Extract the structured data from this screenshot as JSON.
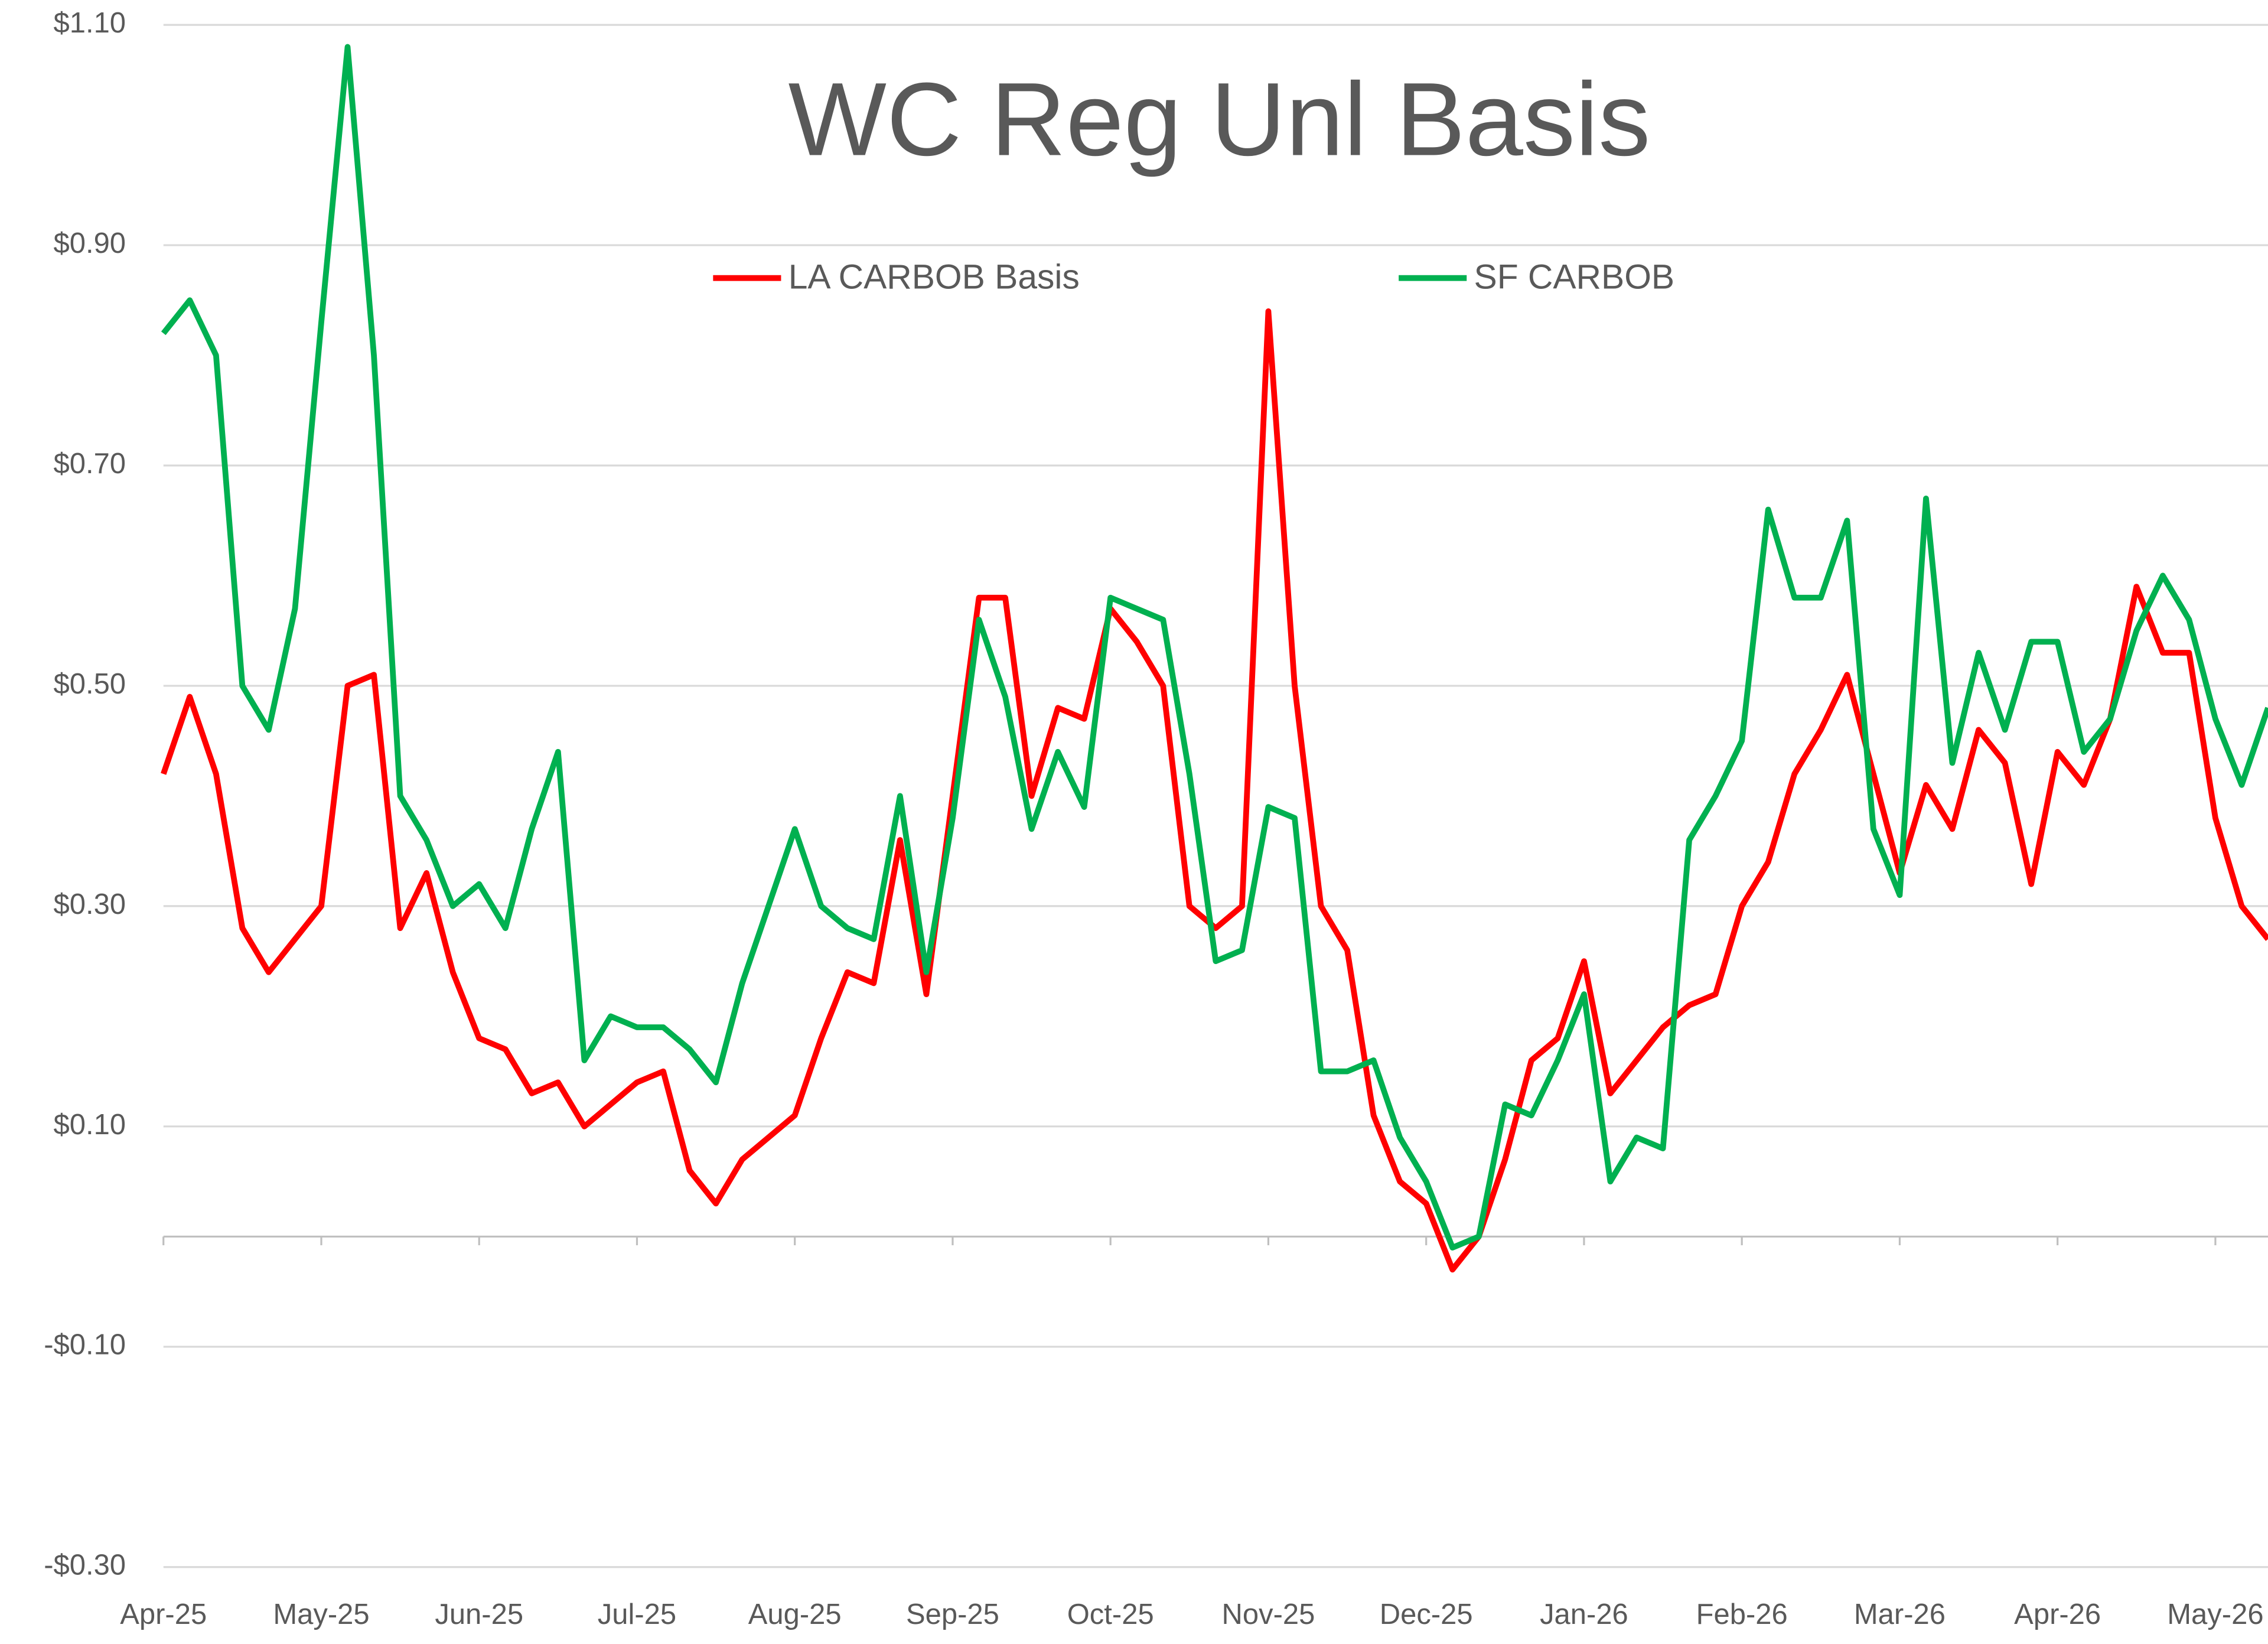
{
  "chart_data": {
    "type": "line",
    "title": "WC Reg Unl Basis",
    "categories": [
      "Apr-25",
      null,
      null,
      null,
      null,
      null,
      "May-25",
      null,
      null,
      null,
      null,
      null,
      "Jun-25",
      null,
      null,
      null,
      null,
      null,
      "Jul-25",
      null,
      null,
      null,
      null,
      null,
      "Aug-25",
      null,
      null,
      null,
      null,
      null,
      "Sep-25",
      null,
      null,
      null,
      null,
      null,
      "Oct-25",
      null,
      null,
      null,
      null,
      null,
      "Nov-25",
      null,
      null,
      null,
      null,
      null,
      "Dec-25",
      null,
      null,
      null,
      null,
      null,
      "Jan-26",
      null,
      null,
      null,
      null,
      null,
      "Feb-26",
      null,
      null,
      null,
      null,
      null,
      "Mar-26",
      null,
      null,
      null,
      null,
      null,
      "Apr-26",
      null,
      null,
      null,
      null,
      null,
      "May-26",
      null,
      null
    ],
    "series": [
      {
        "name": "LA CARBOB Basis",
        "color": "#ff0000",
        "values": [
          0.42,
          0.49,
          0.42,
          0.28,
          0.24,
          0.27,
          0.3,
          0.5,
          0.51,
          0.28,
          0.33,
          0.24,
          0.18,
          0.17,
          0.13,
          0.14,
          0.1,
          0.12,
          0.14,
          0.15,
          0.06,
          0.03,
          0.07,
          0.09,
          0.11,
          0.18,
          0.24,
          0.23,
          0.36,
          0.22,
          0.4,
          0.58,
          0.58,
          0.4,
          0.48,
          0.47,
          0.57,
          0.54,
          0.5,
          0.3,
          0.28,
          0.3,
          0.84,
          0.5,
          0.3,
          0.26,
          0.11,
          0.05,
          0.03,
          -0.03,
          0.0,
          0.07,
          0.16,
          0.18,
          0.25,
          0.13,
          0.16,
          0.19,
          0.21,
          0.22,
          0.3,
          0.34,
          0.42,
          0.46,
          0.51,
          0.42,
          0.33,
          0.41,
          0.37,
          0.46,
          0.43,
          0.32,
          0.44,
          0.41,
          0.47,
          0.59,
          0.53,
          0.53,
          0.38,
          0.3,
          0.27
        ]
      },
      {
        "name": "SF CARBOB",
        "color": "#00b050",
        "values": [
          0.82,
          0.85,
          0.8,
          0.5,
          0.46,
          0.57,
          0.83,
          1.08,
          0.8,
          0.4,
          0.36,
          0.3,
          0.32,
          0.28,
          0.37,
          0.44,
          0.16,
          0.2,
          0.19,
          0.19,
          0.17,
          0.14,
          0.23,
          0.3,
          0.37,
          0.3,
          0.28,
          0.27,
          0.4,
          0.24,
          0.38,
          0.56,
          0.49,
          0.37,
          0.44,
          0.39,
          0.58,
          0.57,
          0.56,
          0.42,
          0.25,
          0.26,
          0.39,
          0.38,
          0.15,
          0.15,
          0.16,
          0.09,
          0.05,
          -0.01,
          0.0,
          0.12,
          0.11,
          0.16,
          0.22,
          0.05,
          0.09,
          0.08,
          0.36,
          0.4,
          0.45,
          0.66,
          0.58,
          0.58,
          0.65,
          0.37,
          0.31,
          0.67,
          0.43,
          0.53,
          0.46,
          0.54,
          0.54,
          0.44,
          0.47,
          0.55,
          0.6,
          0.56,
          0.47,
          0.41,
          0.48
        ]
      }
    ],
    "ylim": [
      -0.3,
      1.1
    ],
    "yticks": [
      {
        "value": -0.3,
        "label": "-$0.30"
      },
      {
        "value": -0.1,
        "label": "-$0.10"
      },
      {
        "value": 0.1,
        "label": "$0.10"
      },
      {
        "value": 0.3,
        "label": "$0.30"
      },
      {
        "value": 0.5,
        "label": "$0.50"
      },
      {
        "value": 0.7,
        "label": "$0.70"
      },
      {
        "value": 0.9,
        "label": "$0.90"
      },
      {
        "value": 1.1,
        "label": "$1.10"
      }
    ],
    "grid": true,
    "legend": "top"
  }
}
